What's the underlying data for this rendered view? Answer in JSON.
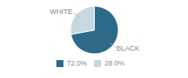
{
  "chart_data": {
    "type": "pie",
    "categories": [
      "BLACK",
      "WHITE"
    ],
    "values": [
      72.0,
      28.0
    ],
    "value_labels": [
      "72.0%",
      "28.0%"
    ],
    "colors": [
      "#2d6a8a",
      "#c8d8e0"
    ],
    "legend": "bottom"
  }
}
